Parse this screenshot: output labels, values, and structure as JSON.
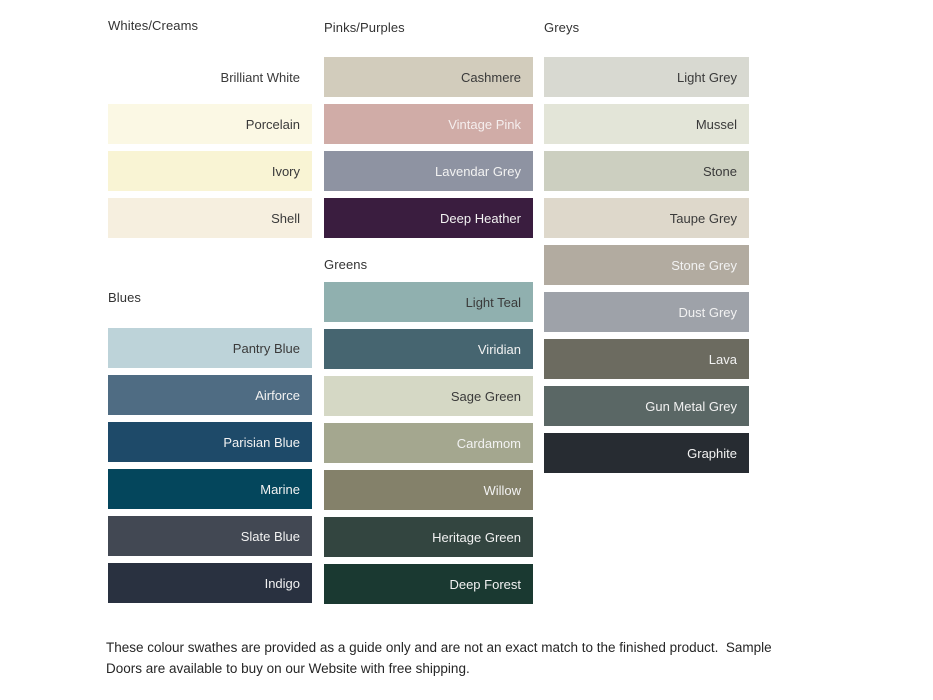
{
  "page": {
    "background": "#ffffff",
    "dark_label_color": "#3a3a3a",
    "light_label_color": "#f2f2f2"
  },
  "groups": [
    {
      "id": "whites-creams",
      "title": "Whites/Creams",
      "swatches": [
        {
          "name": "Brilliant White",
          "color": "#ffffff",
          "text_color": "#3a3a3a"
        },
        {
          "name": "Porcelain",
          "color": "#fbf8e4",
          "text_color": "#3a3a3a"
        },
        {
          "name": "Ivory",
          "color": "#f9f4d4",
          "text_color": "#3a3a3a"
        },
        {
          "name": "Shell",
          "color": "#f6efdf",
          "text_color": "#3a3a3a"
        }
      ]
    },
    {
      "id": "blues",
      "title": "Blues",
      "swatches": [
        {
          "name": "Pantry Blue",
          "color": "#bdd3d9",
          "text_color": "#3a3a3a"
        },
        {
          "name": "Airforce",
          "color": "#4f6c83",
          "text_color": "#f2f2f2"
        },
        {
          "name": "Parisian Blue",
          "color": "#1e4a69",
          "text_color": "#f2f2f2"
        },
        {
          "name": "Marine",
          "color": "#04465c",
          "text_color": "#f2f2f2"
        },
        {
          "name": "Slate Blue",
          "color": "#424853",
          "text_color": "#f2f2f2"
        },
        {
          "name": "Indigo",
          "color": "#293140",
          "text_color": "#f2f2f2"
        }
      ]
    },
    {
      "id": "pinks-purples",
      "title": "Pinks/Purples",
      "swatches": [
        {
          "name": "Cashmere",
          "color": "#d2ccbc",
          "text_color": "#3a3a3a"
        },
        {
          "name": "Vintage Pink",
          "color": "#d0aca7",
          "text_color": "#f5eeee"
        },
        {
          "name": "Lavendar Grey",
          "color": "#8e93a2",
          "text_color": "#f2f2f2"
        },
        {
          "name": "Deep Heather",
          "color": "#3a1d3f",
          "text_color": "#f2f2f2"
        }
      ]
    },
    {
      "id": "greens",
      "title": "Greens",
      "swatches": [
        {
          "name": "Light Teal",
          "color": "#90b0af",
          "text_color": "#3a3a3a"
        },
        {
          "name": "Viridian",
          "color": "#466570",
          "text_color": "#f2f2f2"
        },
        {
          "name": "Sage Green",
          "color": "#d5d8c5",
          "text_color": "#3a3a3a"
        },
        {
          "name": "Cardamom",
          "color": "#a4a78f",
          "text_color": "#f2f2f2"
        },
        {
          "name": "Willow",
          "color": "#84816a",
          "text_color": "#f2f2f2"
        },
        {
          "name": "Heritage Green",
          "color": "#334540",
          "text_color": "#f2f2f2"
        },
        {
          "name": "Deep Forest",
          "color": "#1a3931",
          "text_color": "#f2f2f2"
        }
      ]
    },
    {
      "id": "greys",
      "title": "Greys",
      "swatches": [
        {
          "name": "Light Grey",
          "color": "#d8d9d1",
          "text_color": "#3a3a3a"
        },
        {
          "name": "Mussel",
          "color": "#e3e5d8",
          "text_color": "#3a3a3a"
        },
        {
          "name": "Stone",
          "color": "#cccfc0",
          "text_color": "#3a3a3a"
        },
        {
          "name": "Taupe Grey",
          "color": "#ded8cb",
          "text_color": "#3a3a3a"
        },
        {
          "name": "Stone Grey",
          "color": "#b2aba0",
          "text_color": "#f2f2f2"
        },
        {
          "name": "Dust Grey",
          "color": "#9ea2a9",
          "text_color": "#f2f2f2"
        },
        {
          "name": "Lava",
          "color": "#6c6b60",
          "text_color": "#f2f2f2"
        },
        {
          "name": "Gun Metal Grey",
          "color": "#5a6765",
          "text_color": "#f2f2f2"
        },
        {
          "name": "Graphite",
          "color": "#272c32",
          "text_color": "#f2f2f2"
        }
      ]
    }
  ],
  "footer": {
    "line1": "These colour swathes are provided as a guide only and are not an exact match to the finished product.  Sample",
    "line2": "Doors are available to buy on our Website with free shipping."
  }
}
